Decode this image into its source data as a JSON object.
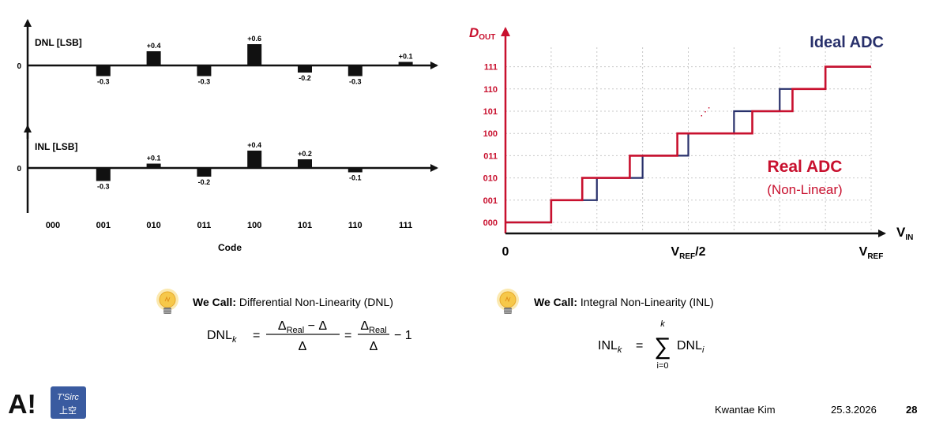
{
  "chart_data": [
    {
      "type": "bar",
      "ylabel": "DNL [LSB]",
      "zero_label": "0",
      "categories": [
        "000",
        "001",
        "010",
        "011",
        "100",
        "101",
        "110",
        "111"
      ],
      "values": [
        0,
        -0.3,
        0.4,
        -0.3,
        0.6,
        -0.2,
        -0.3,
        0.1
      ],
      "value_labels": [
        "",
        "-0.3",
        "+0.4",
        "-0.3",
        "+0.6",
        "-0.2",
        "-0.3",
        "+0.1"
      ]
    },
    {
      "type": "bar",
      "ylabel": "INL [LSB]",
      "zero_label": "0",
      "xlabel": "Code",
      "categories": [
        "000",
        "001",
        "010",
        "011",
        "100",
        "101",
        "110",
        "111"
      ],
      "values": [
        0,
        -0.3,
        0.1,
        -0.2,
        0.4,
        0.2,
        -0.1,
        0
      ],
      "value_labels": [
        "",
        "-0.3",
        "+0.1",
        "-0.2",
        "+0.4",
        "+0.2",
        "-0.1",
        ""
      ]
    },
    {
      "type": "line",
      "ylabel_main": "D",
      "ylabel_sub": "OUT",
      "xlabel_main": "V",
      "xlabel_sub": "IN",
      "ytick_labels": [
        "000",
        "001",
        "010",
        "011",
        "100",
        "101",
        "110",
        "111"
      ],
      "xtick_labels": [
        {
          "main": "0",
          "sub": ""
        },
        {
          "main": "V",
          "sub": "REF",
          "suffix": "/2"
        },
        {
          "main": "V",
          "sub": "REF",
          "suffix": ""
        }
      ],
      "x_domain": [
        0,
        1
      ],
      "y_domain": [
        0,
        7
      ],
      "ellipsis": "⋰",
      "series": [
        {
          "name": "Ideal ADC",
          "color": "#28306b",
          "transitions": [
            0.125,
            0.25,
            0.375,
            0.5,
            0.625,
            0.75,
            0.875
          ]
        },
        {
          "name": "Real ADC",
          "subtitle": "(Non-Linear)",
          "color": "#c8102e",
          "transitions": [
            0.125,
            0.21,
            0.34,
            0.47,
            0.675,
            0.785,
            0.875
          ]
        }
      ]
    }
  ],
  "callouts": {
    "dnl": {
      "prefix": "We Call:",
      "text": "Differential Non-Linearity (DNL)",
      "formula": {
        "lhs": "DNL",
        "lhs_sub": "k",
        "eq": "=",
        "frac1_num": "Δ",
        "frac1_num_sub": "Real",
        "frac1_num_rest": " − Δ",
        "frac1_den": "Δ",
        "eq2": "=",
        "frac2_num": "Δ",
        "frac2_num_sub": "Real",
        "frac2_den": "Δ",
        "tail": "− 1"
      }
    },
    "inl": {
      "prefix": "We Call:",
      "text": "Integral Non-Linearity (INL)",
      "formula": {
        "lhs": "INL",
        "lhs_sub": "k",
        "eq": "=",
        "sigma": "∑",
        "upper": "k",
        "lower": "i=0",
        "term": "DNL",
        "term_sub": "i"
      }
    }
  },
  "footer": {
    "logo_text": "A!",
    "logo2_line1": "T'Sirc",
    "logo2_line2": "上空",
    "author": "Kwantae Kim",
    "date": "25.3.2026",
    "page": "28"
  },
  "colors": {
    "ideal": "#28306b",
    "real": "#c8102e",
    "bulb": "#f6c84a",
    "logo2_bg": "#3a5ba0"
  }
}
